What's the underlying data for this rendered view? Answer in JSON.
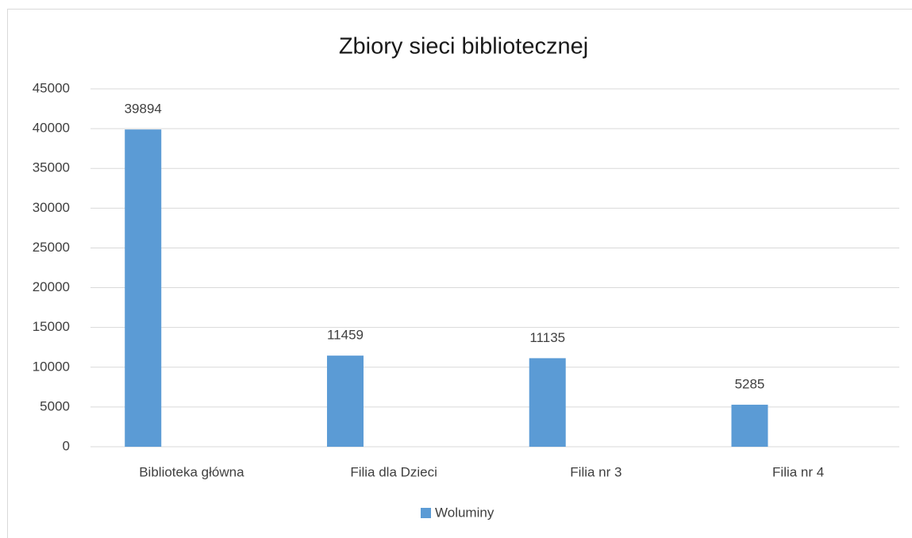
{
  "chart_data": {
    "type": "bar",
    "title": "Zbiory sieci bibliotecznej",
    "categories": [
      "Biblioteka główna",
      "Filia dla Dzieci",
      "Filia nr 3",
      "Filia nr 4"
    ],
    "series": [
      {
        "name": "Woluminy",
        "color": "#5b9bd5",
        "values": [
          39894,
          11459,
          11135,
          5285
        ]
      }
    ],
    "ylim": [
      0,
      45000
    ],
    "yticks": [
      0,
      5000,
      10000,
      15000,
      20000,
      25000,
      30000,
      35000,
      40000,
      45000
    ],
    "grid": true,
    "legend": "bottom"
  }
}
